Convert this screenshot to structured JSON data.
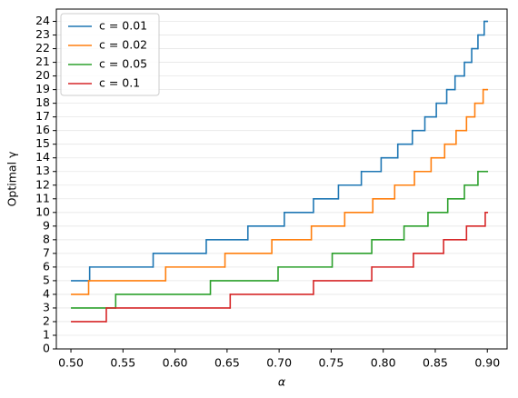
{
  "chart_data": {
    "type": "step",
    "xlabel": "α",
    "ylabel": "Optimal γ",
    "xlim": [
      0.486,
      0.919
    ],
    "ylim": [
      0,
      24.9
    ],
    "xticks": [
      {
        "value": 0.5,
        "label": "0.50"
      },
      0.55,
      {
        "value": 0.6,
        "label": "0.60"
      },
      0.65,
      {
        "value": 0.7,
        "label": "0.70"
      },
      0.75,
      {
        "value": 0.8,
        "label": "0.80"
      },
      0.85,
      {
        "value": 0.9,
        "label": "0.90"
      }
    ],
    "yticks": [
      0,
      1,
      2,
      3,
      4,
      5,
      6,
      7,
      8,
      9,
      10,
      11,
      12,
      13,
      14,
      15,
      16,
      17,
      18,
      19,
      20,
      21,
      22,
      23,
      24
    ],
    "grid": "y",
    "legend": "upper left",
    "series": [
      {
        "name": "c = 0.01",
        "color": "#1f77b4",
        "x": [
          0.5,
          0.518,
          0.579,
          0.63,
          0.67,
          0.705,
          0.733,
          0.757,
          0.779,
          0.798,
          0.814,
          0.828,
          0.84,
          0.851,
          0.861,
          0.869,
          0.878,
          0.885,
          0.891,
          0.897,
          0.9
        ],
        "values": [
          5,
          6,
          7,
          8,
          9,
          10,
          11,
          12,
          13,
          14,
          15,
          16,
          17,
          18,
          19,
          20,
          21,
          22,
          23,
          24,
          24
        ]
      },
      {
        "name": "c = 0.02",
        "color": "#ff7f0e",
        "x": [
          0.5,
          0.517,
          0.591,
          0.648,
          0.693,
          0.731,
          0.763,
          0.79,
          0.811,
          0.83,
          0.846,
          0.859,
          0.87,
          0.88,
          0.888,
          0.896,
          0.9
        ],
        "values": [
          4,
          5,
          6,
          7,
          8,
          9,
          10,
          11,
          12,
          13,
          14,
          15,
          16,
          17,
          18,
          19,
          19
        ]
      },
      {
        "name": "c = 0.05",
        "color": "#2ca02c",
        "x": [
          0.5,
          0.543,
          0.634,
          0.699,
          0.751,
          0.789,
          0.82,
          0.843,
          0.862,
          0.878,
          0.891,
          0.9
        ],
        "values": [
          3,
          4,
          5,
          6,
          7,
          8,
          9,
          10,
          11,
          12,
          13,
          13
        ]
      },
      {
        "name": "c = 0.1",
        "color": "#d62728",
        "x": [
          0.5,
          0.534,
          0.653,
          0.733,
          0.789,
          0.829,
          0.858,
          0.88,
          0.898,
          0.9
        ],
        "values": [
          2,
          3,
          4,
          5,
          6,
          7,
          8,
          9,
          10,
          10
        ]
      }
    ]
  }
}
